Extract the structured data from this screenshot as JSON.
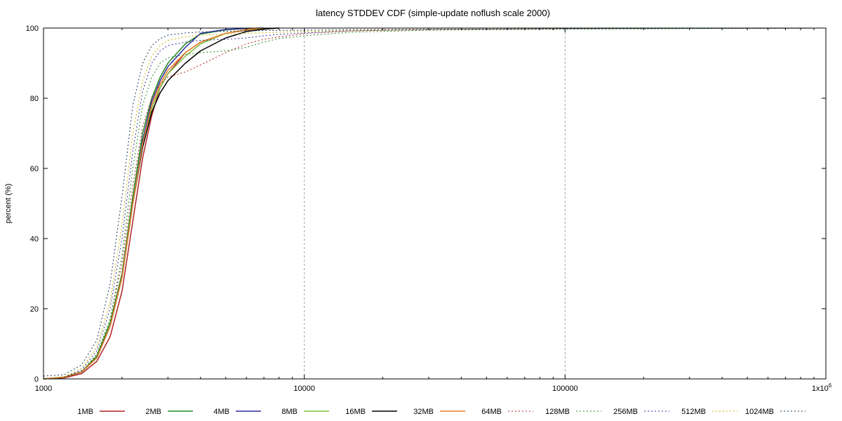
{
  "chart_data": {
    "type": "line",
    "title": "latency STDDEV CDF (simple-update noflush scale 2000)",
    "xlabel": "",
    "ylabel": "percent (%)",
    "xscale": "log",
    "xlim": [
      1000,
      1000000
    ],
    "ylim": [
      0,
      100
    ],
    "x_ticks": [
      {
        "value": 1000,
        "label": "1000"
      },
      {
        "value": 10000,
        "label": "10000"
      },
      {
        "value": 100000,
        "label": "100000"
      },
      {
        "value": 1000000,
        "label": "1x10",
        "exp": "6"
      }
    ],
    "y_ticks": [
      {
        "value": 0,
        "label": "0"
      },
      {
        "value": 20,
        "label": "20"
      },
      {
        "value": 40,
        "label": "40"
      },
      {
        "value": 60,
        "label": "60"
      },
      {
        "value": 80,
        "label": "80"
      },
      {
        "value": 100,
        "label": "100"
      }
    ],
    "grid": {
      "x": true,
      "y": false
    },
    "legend": "bottom",
    "series": [
      {
        "name": "1MB",
        "color": "#b22222",
        "dash": "solid",
        "points": [
          [
            1000,
            0
          ],
          [
            1200,
            0.3
          ],
          [
            1400,
            1.5
          ],
          [
            1600,
            5
          ],
          [
            1800,
            12
          ],
          [
            2000,
            25
          ],
          [
            2200,
            45
          ],
          [
            2400,
            63
          ],
          [
            2600,
            75
          ],
          [
            2800,
            83
          ],
          [
            3000,
            87
          ],
          [
            3500,
            93
          ],
          [
            4000,
            96
          ],
          [
            5000,
            98.5
          ],
          [
            6000,
            99.4
          ],
          [
            7000,
            99.8
          ],
          [
            8000,
            100
          ]
        ]
      },
      {
        "name": "2MB",
        "color": "#228b22",
        "dash": "solid",
        "points": [
          [
            1000,
            0
          ],
          [
            1200,
            0.5
          ],
          [
            1400,
            2
          ],
          [
            1600,
            6.5
          ],
          [
            1800,
            16
          ],
          [
            2000,
            30
          ],
          [
            2200,
            52
          ],
          [
            2400,
            70
          ],
          [
            2600,
            80
          ],
          [
            2800,
            86
          ],
          [
            3000,
            90
          ],
          [
            3500,
            95.5
          ],
          [
            4000,
            98.3
          ],
          [
            5000,
            99.5
          ],
          [
            6000,
            99.9
          ],
          [
            7000,
            100
          ]
        ]
      },
      {
        "name": "4MB",
        "color": "#2e2e9e",
        "dash": "solid",
        "points": [
          [
            1000,
            0
          ],
          [
            1200,
            0.5
          ],
          [
            1400,
            2
          ],
          [
            1600,
            6
          ],
          [
            1800,
            15
          ],
          [
            2000,
            29
          ],
          [
            2200,
            50
          ],
          [
            2400,
            68
          ],
          [
            2600,
            79
          ],
          [
            2800,
            85
          ],
          [
            3000,
            89
          ],
          [
            3500,
            94.5
          ],
          [
            4000,
            98.5
          ],
          [
            5000,
            99.6
          ],
          [
            6000,
            99.9
          ],
          [
            7000,
            100
          ]
        ]
      },
      {
        "name": "8MB",
        "color": "#7fbf3f",
        "dash": "solid",
        "points": [
          [
            1000,
            0
          ],
          [
            1200,
            0.5
          ],
          [
            1400,
            2
          ],
          [
            1600,
            6
          ],
          [
            1800,
            15
          ],
          [
            2000,
            29
          ],
          [
            2200,
            50
          ],
          [
            2400,
            67
          ],
          [
            2600,
            77
          ],
          [
            2800,
            83
          ],
          [
            3000,
            87
          ],
          [
            3500,
            92
          ],
          [
            4000,
            95.5
          ],
          [
            5000,
            98.5
          ],
          [
            6000,
            99.5
          ],
          [
            7000,
            99.9
          ],
          [
            8000,
            100
          ]
        ]
      },
      {
        "name": "16MB",
        "color": "#000000",
        "dash": "solid",
        "points": [
          [
            1000,
            0
          ],
          [
            1200,
            0.5
          ],
          [
            1400,
            2
          ],
          [
            1600,
            6
          ],
          [
            1800,
            15
          ],
          [
            2000,
            29
          ],
          [
            2200,
            50
          ],
          [
            2400,
            66
          ],
          [
            2600,
            76
          ],
          [
            2800,
            81.5
          ],
          [
            3000,
            85
          ],
          [
            3500,
            90
          ],
          [
            4000,
            93.5
          ],
          [
            5000,
            97.2
          ],
          [
            6000,
            99
          ],
          [
            7000,
            99.7
          ],
          [
            8000,
            100
          ]
        ]
      },
      {
        "name": "32MB",
        "color": "#e8812a",
        "dash": "solid",
        "points": [
          [
            1000,
            0
          ],
          [
            1200,
            0.5
          ],
          [
            1400,
            2
          ],
          [
            1600,
            6
          ],
          [
            1800,
            15
          ],
          [
            2000,
            29
          ],
          [
            2200,
            50
          ],
          [
            2400,
            67
          ],
          [
            2600,
            78
          ],
          [
            2800,
            84
          ],
          [
            3000,
            88
          ],
          [
            3500,
            93
          ],
          [
            4000,
            96
          ],
          [
            5000,
            98.5
          ],
          [
            6000,
            99.6
          ],
          [
            7000,
            100
          ]
        ]
      },
      {
        "name": "64MB",
        "color": "#b22222",
        "dash": "dotted",
        "points": [
          [
            1000,
            0
          ],
          [
            1200,
            0.5
          ],
          [
            1400,
            2
          ],
          [
            1600,
            7
          ],
          [
            1800,
            17
          ],
          [
            2000,
            33
          ],
          [
            2200,
            55
          ],
          [
            2400,
            72
          ],
          [
            2600,
            80
          ],
          [
            2800,
            84
          ],
          [
            3000,
            86
          ],
          [
            3500,
            87.5
          ],
          [
            4000,
            89.5
          ],
          [
            5000,
            93
          ],
          [
            6000,
            95.5
          ],
          [
            7000,
            96.8
          ],
          [
            8000,
            97.5
          ],
          [
            10000,
            98.4
          ],
          [
            15000,
            99.2
          ],
          [
            30000,
            99.6
          ],
          [
            100000,
            99.8
          ],
          [
            1000000,
            100
          ]
        ]
      },
      {
        "name": "128MB",
        "color": "#228b22",
        "dash": "dotted",
        "points": [
          [
            1000,
            0
          ],
          [
            1200,
            0.5
          ],
          [
            1400,
            2
          ],
          [
            1600,
            7
          ],
          [
            1800,
            17
          ],
          [
            2000,
            35
          ],
          [
            2200,
            60
          ],
          [
            2400,
            78
          ],
          [
            2600,
            86
          ],
          [
            2800,
            90
          ],
          [
            3000,
            91.5
          ],
          [
            3500,
            92.5
          ],
          [
            4000,
            93
          ],
          [
            5000,
            93.5
          ],
          [
            6000,
            94.5
          ],
          [
            7000,
            96
          ],
          [
            8000,
            97
          ],
          [
            10000,
            97.8
          ],
          [
            15000,
            98.8
          ],
          [
            30000,
            99.4
          ],
          [
            100000,
            99.7
          ],
          [
            1000000,
            100
          ]
        ]
      },
      {
        "name": "256MB",
        "color": "#2e2e9e",
        "dash": "dotted",
        "points": [
          [
            1000,
            0
          ],
          [
            1200,
            0.5
          ],
          [
            1400,
            2.5
          ],
          [
            1600,
            8
          ],
          [
            1800,
            20
          ],
          [
            2000,
            40
          ],
          [
            2200,
            65
          ],
          [
            2400,
            82
          ],
          [
            2600,
            90
          ],
          [
            2800,
            93.5
          ],
          [
            3000,
            95
          ],
          [
            3500,
            96
          ],
          [
            4000,
            96.5
          ],
          [
            5000,
            96.8
          ],
          [
            6000,
            97.2
          ],
          [
            7000,
            97.8
          ],
          [
            8000,
            98.2
          ],
          [
            10000,
            98.6
          ],
          [
            15000,
            99.2
          ],
          [
            30000,
            99.6
          ],
          [
            100000,
            99.8
          ],
          [
            1000000,
            100
          ]
        ]
      },
      {
        "name": "512MB",
        "color": "#c8b400",
        "dash": "dotted",
        "points": [
          [
            1000,
            0
          ],
          [
            1200,
            0.6
          ],
          [
            1400,
            3
          ],
          [
            1600,
            9
          ],
          [
            1800,
            22
          ],
          [
            2000,
            44
          ],
          [
            2200,
            70
          ],
          [
            2400,
            85
          ],
          [
            2600,
            92
          ],
          [
            2800,
            95
          ],
          [
            3000,
            96.5
          ],
          [
            3500,
            97.5
          ],
          [
            4000,
            98
          ],
          [
            5000,
            98.3
          ],
          [
            6000,
            98.5
          ],
          [
            8000,
            98.8
          ],
          [
            10000,
            99
          ],
          [
            15000,
            99.3
          ],
          [
            30000,
            99.6
          ],
          [
            100000,
            99.8
          ],
          [
            1000000,
            100
          ]
        ]
      },
      {
        "name": "1024MB",
        "color": "#1a3a5a",
        "dash": "dotted",
        "points": [
          [
            1000,
            0.8
          ],
          [
            1200,
            1.2
          ],
          [
            1400,
            4
          ],
          [
            1600,
            11
          ],
          [
            1800,
            27
          ],
          [
            2000,
            52
          ],
          [
            2200,
            78
          ],
          [
            2400,
            90
          ],
          [
            2600,
            95
          ],
          [
            2800,
            97
          ],
          [
            3000,
            98
          ],
          [
            3500,
            98.6
          ],
          [
            4000,
            98.9
          ],
          [
            5000,
            99.1
          ],
          [
            7000,
            99.3
          ],
          [
            10000,
            99.4
          ],
          [
            20000,
            99.6
          ],
          [
            50000,
            99.7
          ],
          [
            100000,
            99.8
          ],
          [
            1000000,
            100
          ]
        ]
      }
    ]
  }
}
